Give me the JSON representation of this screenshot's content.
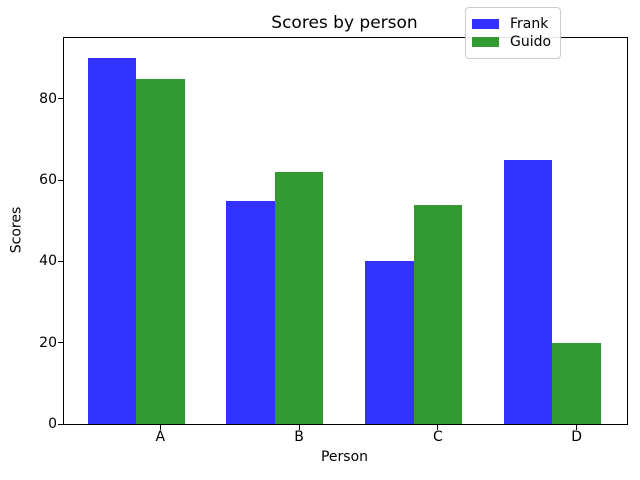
{
  "chart_data": {
    "type": "bar",
    "title": "Scores by person",
    "xlabel": "Person",
    "ylabel": "Scores",
    "categories": [
      "A",
      "B",
      "C",
      "D"
    ],
    "series": [
      {
        "name": "Frank",
        "color": "#3333ff",
        "values": [
          90,
          55,
          40,
          65
        ]
      },
      {
        "name": "Guido",
        "color": "#339933",
        "values": [
          85,
          62,
          54,
          20
        ]
      }
    ],
    "yticks": [
      0,
      20,
      40,
      60,
      80
    ],
    "ylim": [
      0,
      95
    ],
    "legend_position": "upper right",
    "grid": false
  }
}
